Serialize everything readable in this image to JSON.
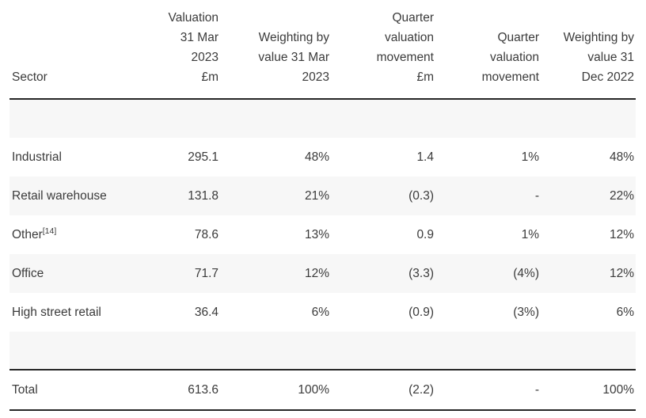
{
  "colors": {
    "text": "#3b3b3b",
    "stripe_background": "#f7f7f7",
    "rule": "#262626",
    "page_background": "#ffffff"
  },
  "table": {
    "headers": [
      "Sector",
      "Valuation\n31 Mar\n2023\n£m",
      "Weighting by\nvalue 31 Mar\n2023",
      "Quarter\nvaluation\nmovement\n£m",
      "Quarter\nvaluation\nmovement",
      "Weighting by\nvalue 31\nDec 2022"
    ],
    "rows": [
      {
        "sector": "Industrial",
        "footnote": "",
        "values": [
          "295.1",
          "48%",
          "1.4",
          "1%",
          "48%"
        ]
      },
      {
        "sector": "Retail warehouse",
        "footnote": "",
        "values": [
          "131.8",
          "21%",
          "(0.3)",
          "-",
          "22%"
        ]
      },
      {
        "sector": "Other",
        "footnote": "[14]",
        "values": [
          "78.6",
          "13%",
          "0.9",
          "1%",
          "12%"
        ]
      },
      {
        "sector": "Office",
        "footnote": "",
        "values": [
          "71.7",
          "12%",
          "(3.3)",
          "(4%)",
          "12%"
        ]
      },
      {
        "sector": "High street retail",
        "footnote": "",
        "values": [
          "36.4",
          "6%",
          "(0.9)",
          "(3%)",
          "6%"
        ]
      }
    ],
    "total": {
      "label": "Total",
      "values": [
        "613.6",
        "100%",
        "(2.2)",
        "-",
        "100%"
      ]
    }
  }
}
